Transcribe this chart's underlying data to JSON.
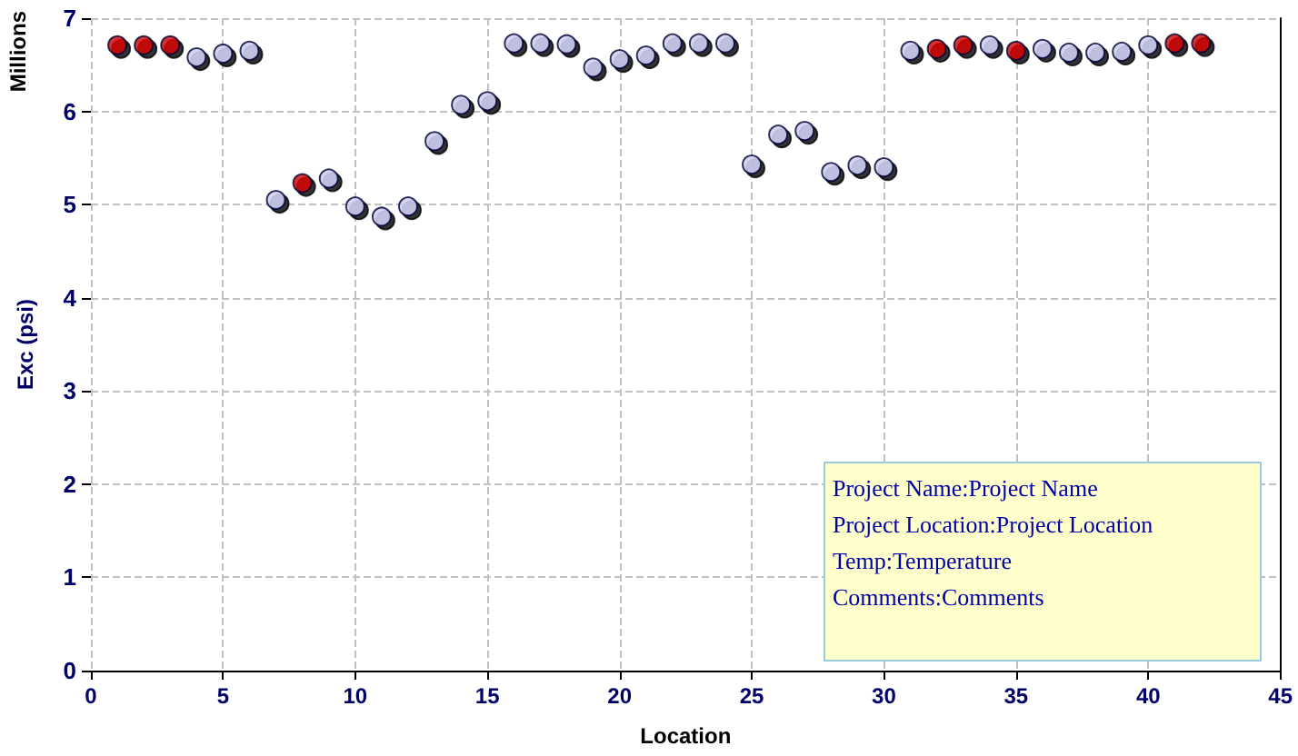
{
  "chart_data": {
    "type": "scatter",
    "xlabel": "Location",
    "ylabel": "Exc (psi)",
    "annotations": [
      "Millions",
      "Project Name:Project Name",
      "Project Location:Project Location",
      "Temp:Temperature",
      "Comments:Comments"
    ],
    "series": [
      {
        "color": "#cc0000",
        "x": [
          1,
          2,
          3,
          8,
          32,
          33,
          35,
          41,
          42
        ],
        "values": [
          6.71,
          6.71,
          6.71,
          5.23,
          6.67,
          6.71,
          6.65,
          6.73,
          6.73
        ]
      },
      {
        "color": "#ccccf0",
        "x": [
          4,
          5,
          6,
          7,
          9,
          10,
          11,
          12,
          13,
          14,
          15,
          16,
          17,
          18,
          19,
          20,
          21,
          22,
          23,
          24,
          25,
          26,
          27,
          28,
          29,
          30,
          31,
          34,
          36,
          37,
          38,
          39,
          40
        ],
        "values": [
          6.58,
          6.62,
          6.65,
          5.05,
          5.28,
          4.98,
          4.87,
          4.98,
          5.68,
          6.07,
          6.11,
          6.73,
          6.73,
          6.72,
          6.47,
          6.56,
          6.6,
          6.73,
          6.73,
          6.73,
          5.43,
          5.75,
          5.79,
          5.35,
          5.42,
          5.4,
          6.65,
          6.71,
          6.67,
          6.63,
          6.63,
          6.64,
          6.71
        ]
      }
    ],
    "xlim": [
      0,
      45
    ],
    "xticks": [
      0,
      5,
      10,
      15,
      20,
      25,
      30,
      35,
      40,
      45
    ],
    "ylim": [
      0,
      7
    ],
    "yticks": [
      0,
      1,
      2,
      3,
      4,
      5,
      6,
      7
    ],
    "grid": true,
    "marker": "circle"
  }
}
